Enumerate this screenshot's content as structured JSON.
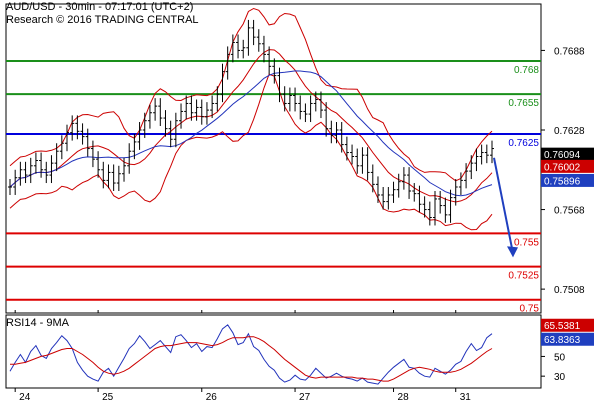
{
  "header": {
    "title": "AUD/USD - 30min - 07:17:01 (UTC+2)",
    "subtitle": "Research © 2016 TRADING CENTRAL"
  },
  "rsi_label": "RSI14 - 9MA",
  "colors": {
    "price": "#000000",
    "bollinger": "#cc0000",
    "moving_average": "#2233bb",
    "support": "#dd0000",
    "resistance": "#1a8f1a",
    "pivot": "#0000dd",
    "forecast_arrow": "#1f3fbf",
    "tag_black": "#000000",
    "tag_red": "#cc0000",
    "tag_blue": "#1f3fbf"
  },
  "chart_data": [
    {
      "type": "line",
      "title": "AUD/USD - 30min",
      "xlabel": "",
      "ylabel": "",
      "x_ticks": [
        "24",
        "25",
        "26",
        "27",
        "28",
        "31"
      ],
      "y_ticks": [
        0.7508,
        0.7568,
        0.7628,
        0.7688
      ],
      "ylim": [
        0.749,
        0.7723
      ],
      "grid": false,
      "horizontal_levels": [
        {
          "label": "0.768",
          "value": 0.768,
          "kind": "resistance"
        },
        {
          "label": "0.7655",
          "value": 0.7655,
          "kind": "resistance"
        },
        {
          "label": "0.7625",
          "value": 0.7625,
          "kind": "pivot"
        },
        {
          "label": "0.755",
          "value": 0.755,
          "kind": "support"
        },
        {
          "label": "0.7525",
          "value": 0.7525,
          "kind": "support"
        },
        {
          "label": "0.75",
          "value": 0.75,
          "kind": "support"
        }
      ],
      "price_tags": [
        {
          "label": "0.76094",
          "value": 0.76094,
          "color": "black"
        },
        {
          "label": "0.76002",
          "value": 0.76002,
          "color": "red"
        },
        {
          "label": "0.75896",
          "value": 0.75896,
          "color": "blue"
        }
      ],
      "forecast_arrow": {
        "from": 0.7607,
        "to": 0.7535
      },
      "series": [
        {
          "kind": "price",
          "values": [
            0.7585,
            0.7592,
            0.7598,
            0.7594,
            0.7601,
            0.7605,
            0.7598,
            0.7594,
            0.7603,
            0.7612,
            0.7618,
            0.7626,
            0.7633,
            0.7627,
            0.7623,
            0.7614,
            0.7606,
            0.7598,
            0.759,
            0.7596,
            0.7588,
            0.7595,
            0.7601,
            0.7612,
            0.7619,
            0.7628,
            0.7635,
            0.7641,
            0.7646,
            0.7637,
            0.7629,
            0.7621,
            0.7635,
            0.7642,
            0.7648,
            0.7641,
            0.7645,
            0.7638,
            0.7643,
            0.7648,
            0.7655,
            0.7672,
            0.7685,
            0.7694,
            0.7688,
            0.769,
            0.7705,
            0.7698,
            0.7693,
            0.7685,
            0.7676,
            0.7669,
            0.7655,
            0.7648,
            0.7654,
            0.7648,
            0.7642,
            0.764,
            0.7648,
            0.7651,
            0.7643,
            0.7629,
            0.7624,
            0.7628,
            0.7617,
            0.7611,
            0.7608,
            0.7601,
            0.7609,
            0.7596,
            0.7587,
            0.7579,
            0.7574,
            0.7579,
            0.7583,
            0.7589,
            0.7594,
            0.7582,
            0.758,
            0.7572,
            0.7568,
            0.7562,
            0.7576,
            0.7571,
            0.7564,
            0.7577,
            0.7585,
            0.759,
            0.7597,
            0.7603,
            0.7608,
            0.7611,
            0.7609,
            0.7614
          ]
        },
        {
          "kind": "rsi",
          "ylim": [
            18,
            92
          ],
          "y_ticks": [
            30,
            50,
            70
          ],
          "values": [
            35,
            44,
            52,
            44,
            55,
            61,
            51,
            48,
            58,
            64,
            71,
            66,
            58,
            44,
            36,
            30,
            27,
            25,
            34,
            38,
            30,
            39,
            48,
            58,
            63,
            71,
            65,
            58,
            62,
            66,
            60,
            54,
            70,
            72,
            66,
            59,
            63,
            55,
            60,
            59,
            68,
            78,
            82,
            74,
            62,
            64,
            73,
            60,
            56,
            47,
            40,
            36,
            28,
            24,
            26,
            31,
            27,
            26,
            31,
            38,
            33,
            28,
            30,
            33,
            30,
            28,
            27,
            25,
            28,
            24,
            23,
            22,
            28,
            34,
            39,
            43,
            47,
            39,
            38,
            33,
            30,
            29,
            38,
            35,
            32,
            36,
            42,
            45,
            55,
            63,
            56,
            59,
            69,
            73
          ]
        },
        {
          "kind": "rsi_ma",
          "values": [
            42,
            42,
            43,
            44,
            46,
            48,
            50,
            51,
            53,
            55,
            57,
            58,
            58,
            55,
            52,
            48,
            44,
            39,
            35,
            33,
            32,
            33,
            35,
            38,
            42,
            46,
            50,
            54,
            58,
            60,
            61,
            61,
            62,
            63,
            64,
            64,
            64,
            63,
            62,
            61,
            62,
            64,
            67,
            69,
            69,
            69,
            70,
            70,
            68,
            65,
            61,
            57,
            52,
            47,
            43,
            39,
            35,
            31,
            29,
            28,
            29,
            29,
            29,
            29,
            29,
            29,
            29,
            28,
            28,
            27,
            27,
            26,
            25,
            25,
            27,
            30,
            33,
            36,
            38,
            39,
            38,
            37,
            35,
            34,
            34,
            34,
            35,
            37,
            40,
            43,
            47,
            51,
            55,
            58
          ]
        }
      ]
    }
  ],
  "rsi_tags": [
    {
      "label": "65.5381",
      "color": "red"
    },
    {
      "label": "63.8363",
      "color": "blue"
    }
  ]
}
